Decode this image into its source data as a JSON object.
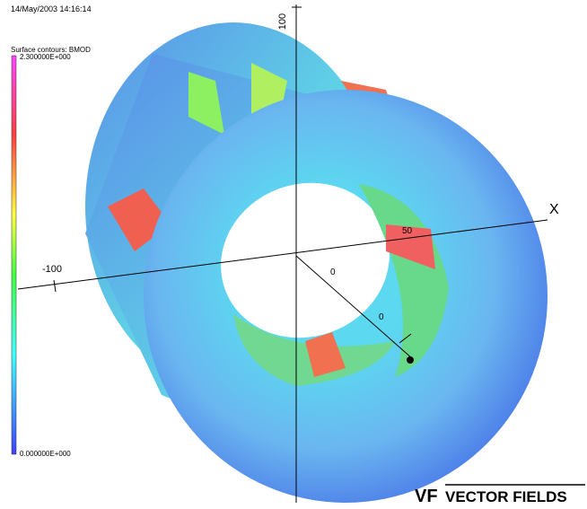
{
  "header": {
    "timestamp": "14/May/2003 14:16:14"
  },
  "legend": {
    "title": "Surface contours: BMOD",
    "max_label": "2.300000E+000",
    "min_label": "0.000000E+000"
  },
  "axes": {
    "z_label": "100",
    "x_neg_label": "-100",
    "x_name": "X",
    "tick_50": "50",
    "tick_0a": "0",
    "tick_0b": "0"
  },
  "logo": {
    "mark": "VF",
    "text": "VECTOR FIELDS"
  }
}
